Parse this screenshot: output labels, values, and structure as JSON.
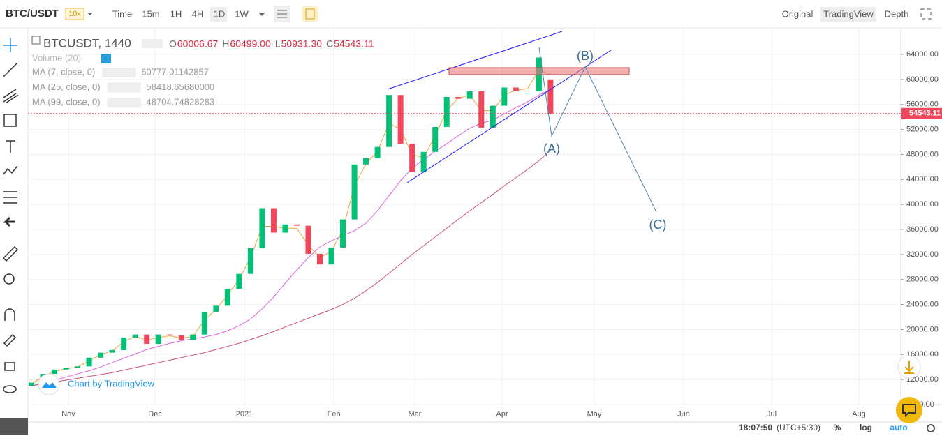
{
  "toolbar": {
    "symbol": "BTC/USDT",
    "leverage": "10x",
    "intervals": [
      "Time",
      "15m",
      "1H",
      "4H",
      "1D",
      "1W"
    ],
    "views": [
      "Original",
      "TradingView",
      "Depth"
    ]
  },
  "legend": {
    "title": "BTCUSDT, 1440",
    "ohlc": [
      {
        "key": "O",
        "value": "60006.67"
      },
      {
        "key": "H",
        "value": "60499.00"
      },
      {
        "key": "L",
        "value": "50931.30"
      },
      {
        "key": "C",
        "value": "54543.11"
      }
    ],
    "volume": "Volume (20)",
    "studies": [
      {
        "name": "MA (7, close, 0)",
        "value": "60777.01142857"
      },
      {
        "name": "MA (25, close, 0)",
        "value": "58418.65680000"
      },
      {
        "name": "MA (99, close, 0)",
        "value": "48704.74828283"
      }
    ]
  },
  "chart": {
    "ylim": [
      8000,
      68240
    ],
    "yticks": [
      {
        "value": 64000,
        "label": "64000.00"
      },
      {
        "value": 60000,
        "label": "60000.00"
      },
      {
        "value": 56000,
        "label": "56000.00"
      },
      {
        "value": 52000,
        "label": "52000.00"
      },
      {
        "value": 48000,
        "label": "48000.00"
      },
      {
        "value": 44000,
        "label": "44000.00"
      },
      {
        "value": 40000,
        "label": "40000.00"
      },
      {
        "value": 36000,
        "label": "36000.00"
      },
      {
        "value": 32000,
        "label": "32000.00"
      },
      {
        "value": 28000,
        "label": "28000.00"
      },
      {
        "value": 24000,
        "label": "24000.00"
      },
      {
        "value": 20000,
        "label": "20000.00"
      },
      {
        "value": 16000,
        "label": "16000.00"
      },
      {
        "value": 12000,
        "label": "12000.00"
      },
      {
        "value": 8000,
        "label": "8000.00"
      }
    ],
    "last_price": {
      "value": 54543.11,
      "label": "54543.11"
    },
    "time_labels": [
      "Nov",
      "Dec",
      "2021",
      "Feb",
      "Mar",
      "Apr",
      "May",
      "Jun",
      "Jul",
      "Aug"
    ],
    "opens": [
      11000,
      11500,
      12900,
      13600,
      13800,
      14100,
      15500,
      16300,
      16700,
      18700,
      19200,
      17700,
      19200,
      19100,
      18300,
      19200,
      22800,
      23800,
      26500,
      28900,
      33000,
      39400,
      35500,
      36800,
      36600,
      32100,
      30400,
      33100,
      37600,
      46400,
      47400,
      49200,
      57500,
      49700,
      45200,
      48400,
      52400,
      57200,
      56900,
      58100,
      52300,
      55800,
      58700,
      58200,
      58100,
      60006.67
    ],
    "closes": [
      11500,
      12900,
      13600,
      13800,
      14100,
      15500,
      16300,
      16700,
      18700,
      19200,
      17700,
      19200,
      19100,
      18300,
      19200,
      22800,
      23800,
      26500,
      28900,
      33000,
      39400,
      35500,
      36800,
      36600,
      32100,
      30400,
      33100,
      37600,
      46400,
      47400,
      49200,
      57500,
      49700,
      45200,
      48400,
      52400,
      57200,
      56900,
      58100,
      52300,
      55800,
      58700,
      58200,
      58100,
      63500,
      54543.11
    ],
    "ma": [
      {
        "color": "#e8a83a",
        "values": [
          11300,
          12500,
          13300,
          13700,
          14000,
          15000,
          16000,
          16600,
          18000,
          18900,
          18300,
          18700,
          19000,
          18600,
          18900,
          21500,
          23200,
          25500,
          28000,
          31500,
          36500,
          36500,
          36200,
          36200,
          33500,
          31500,
          32500,
          36000,
          43000,
          46500,
          48500,
          53000,
          52000,
          48000,
          47500,
          51000,
          55000,
          57000,
          57500,
          55000,
          55000,
          57500,
          58300,
          58500,
          61500,
          60777
        ]
      },
      {
        "color": "#e060e0",
        "values": [
          11000,
          11400,
          11900,
          12400,
          12900,
          13400,
          14000,
          14700,
          15400,
          16100,
          16800,
          17300,
          17800,
          18200,
          18500,
          18800,
          19200,
          19800,
          20600,
          21700,
          23300,
          25200,
          27400,
          29500,
          31500,
          33200,
          34200,
          35000,
          35800,
          37000,
          39000,
          41400,
          43800,
          45800,
          47200,
          48500,
          49700,
          51000,
          52200,
          53000,
          53500,
          54500,
          55500,
          56400,
          57500,
          58418
        ]
      },
      {
        "color": "#d0507a",
        "values": [
          11000,
          11300,
          11600,
          11900,
          12200,
          12500,
          12800,
          13100,
          13500,
          13900,
          14300,
          14700,
          15100,
          15500,
          15900,
          16300,
          16800,
          17300,
          17800,
          18400,
          19000,
          19700,
          20400,
          21100,
          21800,
          22500,
          23200,
          24000,
          25000,
          26200,
          27500,
          29000,
          30500,
          32000,
          33400,
          34800,
          36200,
          37600,
          39000,
          40300,
          41600,
          43000,
          44300,
          45600,
          47000,
          48704
        ]
      }
    ],
    "up_color": "#02c076",
    "down_color": "#f0475c",
    "waves": [
      "(A)",
      "(B)",
      "(C)"
    ],
    "watermark": "Chart by TradingView"
  },
  "status": {
    "time": "18:07:50",
    "timezone": "(UTC+5:30)",
    "options": [
      "%",
      "log",
      "auto"
    ]
  }
}
